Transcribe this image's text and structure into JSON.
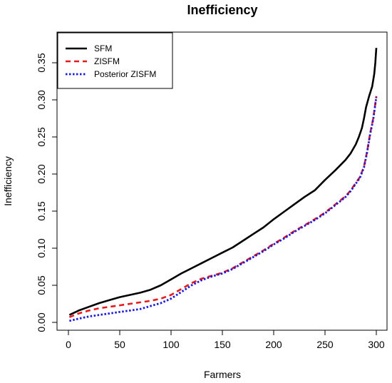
{
  "chart_data": {
    "type": "line",
    "title": "Inefficiency",
    "xlabel": "Farmers",
    "ylabel": "Inefficiency",
    "xlim": [
      0,
      300
    ],
    "ylim": [
      0,
      0.37
    ],
    "xticks": [
      "0",
      "50",
      "100",
      "150",
      "200",
      "250",
      "300"
    ],
    "yticks": [
      "0.00",
      "0.05",
      "0.10",
      "0.15",
      "0.20",
      "0.25",
      "0.30",
      "0.35"
    ],
    "grid": false,
    "legend_position": "top-left",
    "series": [
      {
        "name": "SFM",
        "color": "#000000",
        "dash": "solid",
        "x": [
          1,
          10,
          20,
          30,
          40,
          50,
          60,
          70,
          80,
          90,
          100,
          110,
          120,
          130,
          140,
          150,
          160,
          170,
          180,
          190,
          200,
          210,
          220,
          230,
          240,
          250,
          260,
          270,
          275,
          280,
          283,
          286,
          288,
          290,
          293,
          296,
          298,
          299,
          300
        ],
        "y": [
          0.01,
          0.016,
          0.021,
          0.026,
          0.03,
          0.034,
          0.037,
          0.04,
          0.044,
          0.05,
          0.058,
          0.066,
          0.073,
          0.08,
          0.087,
          0.094,
          0.101,
          0.11,
          0.119,
          0.128,
          0.139,
          0.149,
          0.159,
          0.169,
          0.178,
          0.192,
          0.205,
          0.219,
          0.228,
          0.24,
          0.25,
          0.262,
          0.275,
          0.29,
          0.305,
          0.318,
          0.335,
          0.35,
          0.37
        ]
      },
      {
        "name": "ZISFM",
        "color": "#e41a1c",
        "dash": "dashed",
        "x": [
          1,
          10,
          20,
          30,
          40,
          50,
          60,
          70,
          80,
          90,
          100,
          110,
          120,
          130,
          140,
          150,
          160,
          170,
          180,
          190,
          200,
          210,
          220,
          230,
          240,
          250,
          260,
          270,
          275,
          280,
          284,
          288,
          291,
          294,
          297,
          299,
          300
        ],
        "y": [
          0.007,
          0.012,
          0.016,
          0.019,
          0.021,
          0.023,
          0.025,
          0.027,
          0.029,
          0.032,
          0.037,
          0.045,
          0.053,
          0.059,
          0.063,
          0.067,
          0.073,
          0.081,
          0.089,
          0.097,
          0.106,
          0.114,
          0.123,
          0.131,
          0.139,
          0.148,
          0.159,
          0.17,
          0.178,
          0.188,
          0.196,
          0.21,
          0.23,
          0.255,
          0.275,
          0.295,
          0.305
        ]
      },
      {
        "name": "Posterior ZISFM",
        "color": "#1a1adf",
        "dash": "dotted",
        "x": [
          1,
          10,
          20,
          30,
          40,
          50,
          60,
          70,
          80,
          90,
          100,
          110,
          120,
          130,
          140,
          150,
          160,
          170,
          180,
          190,
          200,
          210,
          220,
          230,
          240,
          250,
          260,
          270,
          275,
          280,
          284,
          288,
          291,
          294,
          297,
          299,
          300
        ],
        "y": [
          0.002,
          0.005,
          0.008,
          0.01,
          0.012,
          0.014,
          0.016,
          0.018,
          0.022,
          0.026,
          0.032,
          0.041,
          0.05,
          0.057,
          0.062,
          0.066,
          0.072,
          0.08,
          0.088,
          0.096,
          0.105,
          0.113,
          0.122,
          0.13,
          0.138,
          0.147,
          0.158,
          0.169,
          0.177,
          0.187,
          0.195,
          0.209,
          0.229,
          0.254,
          0.274,
          0.294,
          0.304
        ]
      }
    ]
  }
}
